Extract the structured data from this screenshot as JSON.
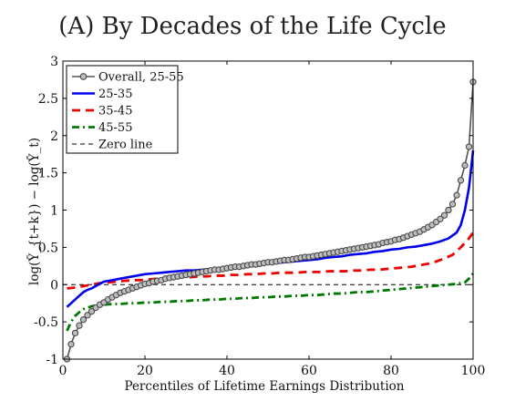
{
  "chart_data": {
    "type": "line",
    "title": "(A) By Decades of the Life Cycle",
    "xlabel": "Percentiles of Lifetime Earnings Distribution",
    "ylabel": "log(Ȳ_{t+k}) − log(Ȳ_t)",
    "xlim": [
      0,
      100
    ],
    "ylim": [
      -1,
      3
    ],
    "xticks": [
      0,
      20,
      40,
      60,
      80,
      100
    ],
    "yticks": [
      -1,
      -0.5,
      0,
      0.5,
      1,
      1.5,
      2,
      2.5,
      3
    ],
    "ytick_labels": [
      "-1",
      "-0.5",
      "0",
      "0.5",
      "1",
      "1.5",
      "2",
      "2.5",
      "3"
    ],
    "grid": false,
    "legend_position": "top-left",
    "series": [
      {
        "name": "Overall, 25-55",
        "color": "#505050",
        "style": "solid-circles",
        "x": [
          1,
          2,
          3,
          4,
          5,
          6,
          7,
          8,
          9,
          10,
          11,
          12,
          13,
          14,
          15,
          16,
          17,
          18,
          19,
          20,
          21,
          22,
          23,
          24,
          25,
          26,
          27,
          28,
          29,
          30,
          31,
          32,
          33,
          34,
          35,
          36,
          37,
          38,
          39,
          40,
          41,
          42,
          43,
          44,
          45,
          46,
          47,
          48,
          49,
          50,
          51,
          52,
          53,
          54,
          55,
          56,
          57,
          58,
          59,
          60,
          61,
          62,
          63,
          64,
          65,
          66,
          67,
          68,
          69,
          70,
          71,
          72,
          73,
          74,
          75,
          76,
          77,
          78,
          79,
          80,
          81,
          82,
          83,
          84,
          85,
          86,
          87,
          88,
          89,
          90,
          91,
          92,
          93,
          94,
          95,
          96,
          97,
          98,
          99,
          100
        ],
        "values": [
          -1.0,
          -0.8,
          -0.65,
          -0.55,
          -0.47,
          -0.41,
          -0.36,
          -0.31,
          -0.27,
          -0.24,
          -0.2,
          -0.17,
          -0.14,
          -0.11,
          -0.09,
          -0.07,
          -0.05,
          -0.03,
          -0.01,
          0.01,
          0.02,
          0.04,
          0.05,
          0.06,
          0.08,
          0.09,
          0.1,
          0.11,
          0.12,
          0.13,
          0.14,
          0.15,
          0.16,
          0.17,
          0.18,
          0.19,
          0.2,
          0.2,
          0.21,
          0.22,
          0.23,
          0.24,
          0.24,
          0.25,
          0.26,
          0.27,
          0.27,
          0.28,
          0.29,
          0.3,
          0.3,
          0.31,
          0.32,
          0.33,
          0.33,
          0.34,
          0.35,
          0.36,
          0.37,
          0.37,
          0.38,
          0.39,
          0.4,
          0.41,
          0.42,
          0.43,
          0.44,
          0.45,
          0.46,
          0.47,
          0.48,
          0.49,
          0.5,
          0.51,
          0.52,
          0.53,
          0.54,
          0.56,
          0.57,
          0.58,
          0.6,
          0.61,
          0.63,
          0.65,
          0.67,
          0.69,
          0.71,
          0.74,
          0.77,
          0.8,
          0.84,
          0.88,
          0.93,
          1.0,
          1.08,
          1.2,
          1.4,
          1.6,
          1.85,
          2.72
        ]
      },
      {
        "name": "25-35",
        "color": "#0000ee",
        "style": "solid",
        "x": [
          1,
          2,
          3,
          4,
          5,
          6,
          7,
          8,
          9,
          10,
          12,
          14,
          16,
          18,
          20,
          22,
          24,
          26,
          28,
          30,
          32,
          34,
          36,
          38,
          40,
          42,
          44,
          46,
          48,
          50,
          52,
          54,
          56,
          58,
          60,
          62,
          64,
          66,
          68,
          70,
          72,
          74,
          76,
          78,
          80,
          82,
          84,
          86,
          88,
          90,
          92,
          94,
          96,
          97,
          98,
          99,
          100
        ],
        "values": [
          -0.3,
          -0.25,
          -0.2,
          -0.15,
          -0.1,
          -0.07,
          -0.05,
          -0.02,
          0.01,
          0.04,
          0.06,
          0.08,
          0.1,
          0.12,
          0.14,
          0.15,
          0.16,
          0.17,
          0.18,
          0.19,
          0.19,
          0.2,
          0.21,
          0.22,
          0.23,
          0.24,
          0.25,
          0.26,
          0.27,
          0.28,
          0.29,
          0.3,
          0.31,
          0.32,
          0.33,
          0.34,
          0.36,
          0.37,
          0.38,
          0.4,
          0.41,
          0.42,
          0.44,
          0.45,
          0.47,
          0.48,
          0.5,
          0.51,
          0.53,
          0.55,
          0.58,
          0.62,
          0.7,
          0.8,
          1.0,
          1.3,
          1.8
        ]
      },
      {
        "name": "35-45",
        "color": "#ee0000",
        "style": "dashed",
        "x": [
          1,
          3,
          5,
          7,
          9,
          11,
          13,
          15,
          17,
          19,
          21,
          23,
          25,
          27,
          29,
          31,
          33,
          35,
          37,
          39,
          41,
          43,
          45,
          47,
          49,
          51,
          53,
          55,
          57,
          59,
          61,
          63,
          65,
          67,
          69,
          71,
          73,
          75,
          77,
          79,
          81,
          83,
          85,
          87,
          89,
          91,
          93,
          95,
          97,
          99,
          100
        ],
        "values": [
          -0.05,
          -0.04,
          -0.02,
          0.0,
          0.02,
          0.03,
          0.04,
          0.05,
          0.06,
          0.06,
          0.07,
          0.08,
          0.08,
          0.09,
          0.1,
          0.1,
          0.11,
          0.11,
          0.12,
          0.12,
          0.13,
          0.13,
          0.14,
          0.14,
          0.15,
          0.15,
          0.16,
          0.16,
          0.16,
          0.17,
          0.17,
          0.17,
          0.18,
          0.18,
          0.18,
          0.19,
          0.19,
          0.2,
          0.2,
          0.21,
          0.22,
          0.23,
          0.24,
          0.26,
          0.28,
          0.31,
          0.35,
          0.4,
          0.5,
          0.62,
          0.7
        ]
      },
      {
        "name": "45-55",
        "color": "#007700",
        "style": "dash-dot",
        "x": [
          1,
          2,
          3,
          4,
          5,
          6,
          7,
          8,
          10,
          12,
          14,
          16,
          18,
          20,
          22,
          24,
          26,
          28,
          30,
          32,
          34,
          36,
          38,
          40,
          42,
          44,
          46,
          48,
          50,
          52,
          54,
          56,
          58,
          60,
          62,
          64,
          66,
          68,
          70,
          72,
          74,
          76,
          78,
          80,
          82,
          84,
          86,
          88,
          90,
          92,
          94,
          96,
          98,
          99,
          100
        ],
        "values": [
          -0.62,
          -0.5,
          -0.42,
          -0.37,
          -0.33,
          -0.31,
          -0.29,
          -0.28,
          -0.27,
          -0.26,
          -0.26,
          -0.25,
          -0.25,
          -0.24,
          -0.24,
          -0.23,
          -0.23,
          -0.22,
          -0.22,
          -0.21,
          -0.21,
          -0.2,
          -0.2,
          -0.19,
          -0.19,
          -0.18,
          -0.18,
          -0.17,
          -0.17,
          -0.16,
          -0.16,
          -0.15,
          -0.15,
          -0.14,
          -0.14,
          -0.13,
          -0.12,
          -0.12,
          -0.11,
          -0.1,
          -0.1,
          -0.09,
          -0.08,
          -0.07,
          -0.06,
          -0.05,
          -0.04,
          -0.03,
          -0.02,
          -0.01,
          0.0,
          0.01,
          0.03,
          0.08,
          0.15
        ]
      },
      {
        "name": "Zero line",
        "color": "#000000",
        "style": "thin-dashed",
        "x": [
          0,
          100
        ],
        "values": [
          0,
          0
        ]
      }
    ]
  }
}
